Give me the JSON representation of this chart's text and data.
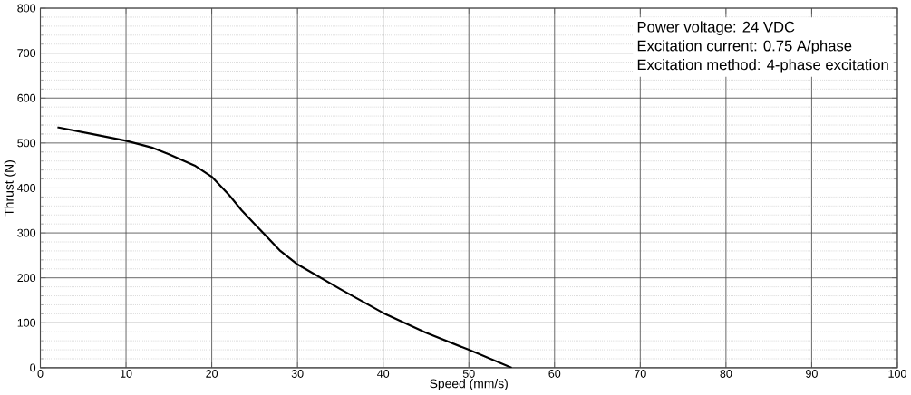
{
  "chart_data": {
    "type": "line",
    "xlabel": "Speed (mm/s)",
    "ylabel": "Thrust (N)",
    "x": [
      2,
      6,
      10,
      13,
      15,
      18,
      20,
      22,
      23.5,
      25,
      28,
      30,
      35,
      40,
      45,
      50,
      55
    ],
    "values": [
      535,
      520,
      505,
      490,
      475,
      450,
      425,
      385,
      350,
      320,
      260,
      230,
      175,
      122,
      78,
      40,
      0
    ],
    "color": "#000000",
    "xlim": [
      0,
      100
    ],
    "ylim": [
      0,
      800
    ],
    "xticks": [
      0,
      10,
      20,
      30,
      40,
      50,
      60,
      70,
      80,
      90,
      100
    ],
    "yticks": [
      0,
      100,
      200,
      300,
      400,
      500,
      600,
      700,
      800
    ],
    "grid": true,
    "marker": "none",
    "line_style": "solid",
    "annotations": [
      "Power voltage: 24 VDC",
      "Excitation current: 0.75 A/phase",
      "Excitation method: 4-phase excitation"
    ]
  }
}
